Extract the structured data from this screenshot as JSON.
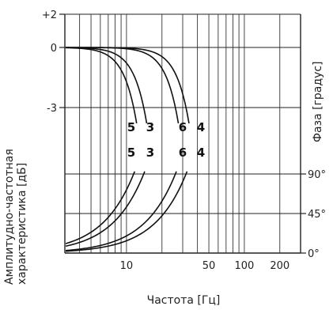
{
  "chart_data": {
    "type": "line",
    "x_scale": "log",
    "xlim": [
      3,
      300
    ],
    "x_ticks": [
      "10",
      "50",
      "100",
      "200"
    ],
    "x_tick_values": [
      10,
      50,
      100,
      200
    ],
    "xlabel": "Частота [Гц]",
    "y_left": {
      "label": "Амплитудно-частотная характеристика [дБ]",
      "ticks": [
        "+2",
        "0",
        "-3"
      ],
      "tick_values": [
        2,
        0,
        -3
      ],
      "lim": [
        -12,
        2
      ]
    },
    "y_right": {
      "label": "Фаза [градус]",
      "ticks": [
        "90°",
        "45°",
        "0°"
      ],
      "tick_values": [
        90,
        45,
        0
      ],
      "lim": [
        0,
        180
      ]
    },
    "grid": true,
    "amplitude_curves": [
      {
        "label": "5",
        "cutoff_hz": 11.5
      },
      {
        "label": "3",
        "cutoff_hz": 14
      },
      {
        "label": "6",
        "cutoff_hz": 26
      },
      {
        "label": "4",
        "cutoff_hz": 32
      }
    ],
    "phase_curves": [
      {
        "label": "5",
        "f90_hz": 11.5
      },
      {
        "label": "3",
        "f90_hz": 14
      },
      {
        "label": "6",
        "f90_hz": 26
      },
      {
        "label": "4",
        "f90_hz": 32
      }
    ]
  }
}
